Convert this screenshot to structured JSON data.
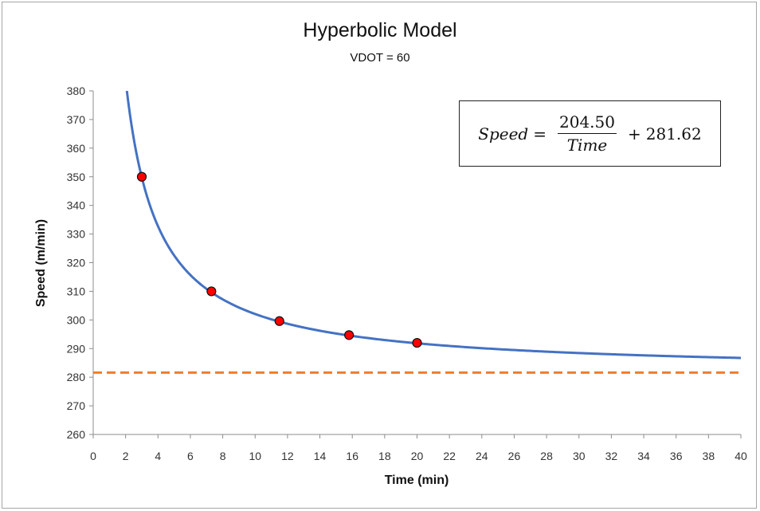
{
  "chart_data": {
    "type": "line",
    "title": "Hyperbolic Model",
    "subtitle": "VDOT = 60",
    "xlabel": "Time (min)",
    "ylabel": "Speed (m/min)",
    "xlim": [
      0,
      40
    ],
    "ylim": [
      260,
      380
    ],
    "xticks": [
      "0",
      "2",
      "4",
      "6",
      "8",
      "10",
      "12",
      "14",
      "16",
      "18",
      "20",
      "22",
      "24",
      "26",
      "28",
      "30",
      "32",
      "34",
      "36",
      "38",
      "40"
    ],
    "yticks": [
      "260",
      "270",
      "280",
      "290",
      "300",
      "310",
      "320",
      "330",
      "340",
      "350",
      "360",
      "370",
      "380"
    ],
    "grid": false,
    "model": {
      "a": 204.5,
      "b": 281.62
    },
    "points": [
      {
        "x": 3.0,
        "y": 350.0
      },
      {
        "x": 7.3,
        "y": 310.0
      },
      {
        "x": 11.5,
        "y": 299.6
      },
      {
        "x": 15.8,
        "y": 294.7
      },
      {
        "x": 20.0,
        "y": 292.0
      }
    ],
    "asymptote": 281.62,
    "colors": {
      "curve": "#4472c4",
      "points": "#ff0000",
      "asymptote": "#ed7d31"
    },
    "equation": {
      "lhs": "Speed",
      "equals": "=",
      "numerator": "204.50",
      "denominator": "Time",
      "plus": "+",
      "constant": "281.62"
    }
  }
}
